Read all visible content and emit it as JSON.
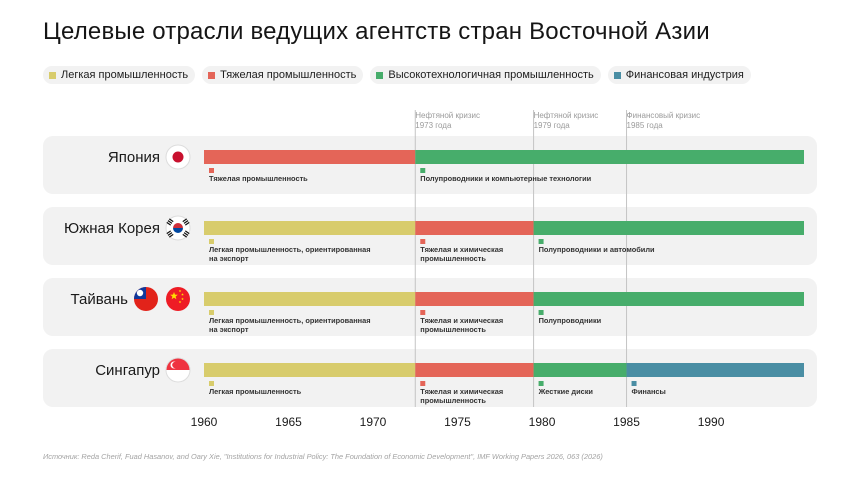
{
  "title": "Целевые отрасли ведущих агентств стран Восточной Азии",
  "source": "Источник: Reda Cherif, Fuad Hasanov, and Oary Xie, \"Institutions for Industrial Policy: The Foundation of Economic Development\", IMF Working Papers 2026, 063 (2026)",
  "chart_data": {
    "type": "bar",
    "subtype": "timeline",
    "xlim": [
      1960,
      1995.5
    ],
    "x_ticks": [
      1960,
      1965,
      1970,
      1975,
      1980,
      1985,
      1990
    ],
    "legend": {
      "placement": "top-left",
      "entries": [
        {
          "name": "Легкая промышленность",
          "color": "#d8cc6c"
        },
        {
          "name": "Тяжелая промышленность",
          "color": "#e46558"
        },
        {
          "name": "Высокотехнологичная промышленность",
          "color": "#47ad6b"
        },
        {
          "name": "Финансовая индустрия",
          "color": "#4a8ea4"
        }
      ]
    },
    "annotations": [
      {
        "x": 1972.5,
        "lines": [
          "Нефтяной кризис",
          "1973 года"
        ]
      },
      {
        "x": 1979.5,
        "lines": [
          "Нефтяной кризис",
          "1979 года"
        ]
      },
      {
        "x": 1985,
        "lines": [
          "Финансовый кризис",
          "1985 года"
        ]
      }
    ],
    "rows": [
      {
        "country": "Япония",
        "flags": [
          "japan-flag"
        ],
        "segments": [
          {
            "start": 1960,
            "end": 1972.5,
            "category": "Тяжелая промышленность",
            "color": "#e46558",
            "label": [
              "Тяжелая промышленность"
            ]
          },
          {
            "start": 1972.5,
            "end": 1995.5,
            "category": "Высокотехнологичная промышленность",
            "color": "#47ad6b",
            "label": [
              "Полупроводники и компьютерные технологии"
            ]
          }
        ]
      },
      {
        "country": "Южная Корея",
        "flags": [
          "south-korea-flag"
        ],
        "segments": [
          {
            "start": 1960,
            "end": 1972.5,
            "category": "Легкая промышленность",
            "color": "#d8cc6c",
            "label": [
              "Легкая промышленность, ориентированная",
              "на экспорт"
            ]
          },
          {
            "start": 1972.5,
            "end": 1979.5,
            "category": "Тяжелая промышленность",
            "color": "#e46558",
            "label": [
              "Тяжелая и химическая",
              "промышленность"
            ]
          },
          {
            "start": 1979.5,
            "end": 1995.5,
            "category": "Высокотехнологичная промышленность",
            "color": "#47ad6b",
            "label": [
              "Полупроводники и автомобили"
            ]
          }
        ]
      },
      {
        "country": "Тайвань",
        "flags": [
          "taiwan-flag",
          "china-flag"
        ],
        "segments": [
          {
            "start": 1960,
            "end": 1972.5,
            "category": "Легкая промышленность",
            "color": "#d8cc6c",
            "label": [
              "Легкая промышленность, ориентированная",
              "на экспорт"
            ]
          },
          {
            "start": 1972.5,
            "end": 1979.5,
            "category": "Тяжелая промышленность",
            "color": "#e46558",
            "label": [
              "Тяжелая и химическая",
              "промышленность"
            ]
          },
          {
            "start": 1979.5,
            "end": 1995.5,
            "category": "Высокотехнологичная промышленность",
            "color": "#47ad6b",
            "label": [
              "Полупроводники"
            ]
          }
        ]
      },
      {
        "country": "Сингапур",
        "flags": [
          "singapore-flag"
        ],
        "segments": [
          {
            "start": 1960,
            "end": 1972.5,
            "category": "Легкая промышленность",
            "color": "#d8cc6c",
            "label": [
              "Легкая промышленность"
            ]
          },
          {
            "start": 1972.5,
            "end": 1979.5,
            "category": "Тяжелая промышленность",
            "color": "#e46558",
            "label": [
              "Тяжелая и химическая",
              "промышленность"
            ]
          },
          {
            "start": 1979.5,
            "end": 1985,
            "category": "Высокотехнологичная промышленность",
            "color": "#47ad6b",
            "label": [
              "Жесткие диски"
            ]
          },
          {
            "start": 1985,
            "end": 1995.5,
            "category": "Финансовая индустрия",
            "color": "#4a8ea4",
            "label": [
              "Финансы"
            ]
          }
        ]
      }
    ]
  }
}
